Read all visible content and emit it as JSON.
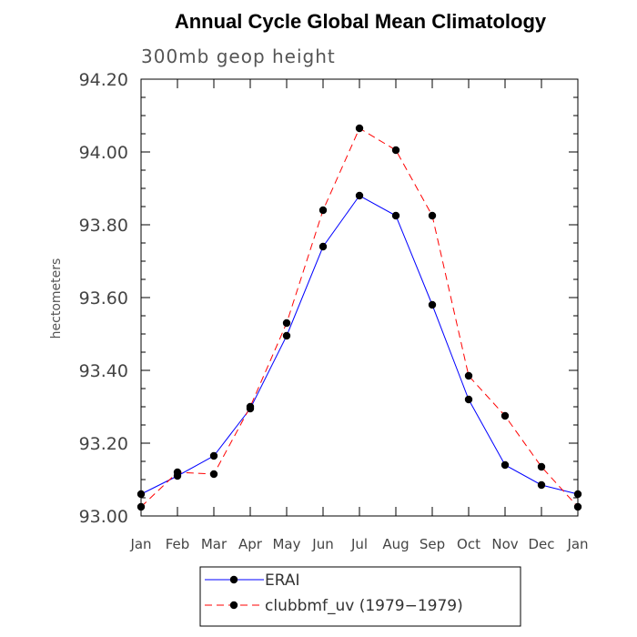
{
  "chart_data": {
    "type": "line",
    "title": "Annual Cycle Global Mean Climatology",
    "subtitle": "300mb geop height",
    "xlabel": "",
    "ylabel": "hectometers",
    "categories": [
      "Jan",
      "Feb",
      "Mar",
      "Apr",
      "May",
      "Jun",
      "Jul",
      "Aug",
      "Sep",
      "Oct",
      "Nov",
      "Dec",
      "Jan"
    ],
    "ylim": [
      93.0,
      94.2
    ],
    "yticks": [
      "93.00",
      "93.20",
      "93.40",
      "93.60",
      "93.80",
      "94.00",
      "94.20"
    ],
    "series": [
      {
        "name": "ERAI",
        "color": "#0000ff",
        "dash": "solid",
        "values": [
          93.06,
          93.11,
          93.165,
          93.295,
          93.495,
          93.74,
          93.88,
          93.825,
          93.58,
          93.32,
          93.14,
          93.085,
          93.06
        ]
      },
      {
        "name": "clubbmf_uv (1979−1979)",
        "color": "#ff0000",
        "dash": "dashed",
        "values": [
          93.025,
          93.12,
          93.115,
          93.3,
          93.53,
          93.84,
          94.065,
          94.005,
          93.825,
          93.385,
          93.275,
          93.135,
          93.025
        ]
      }
    ],
    "grid": false,
    "legend_position": "bottom"
  }
}
